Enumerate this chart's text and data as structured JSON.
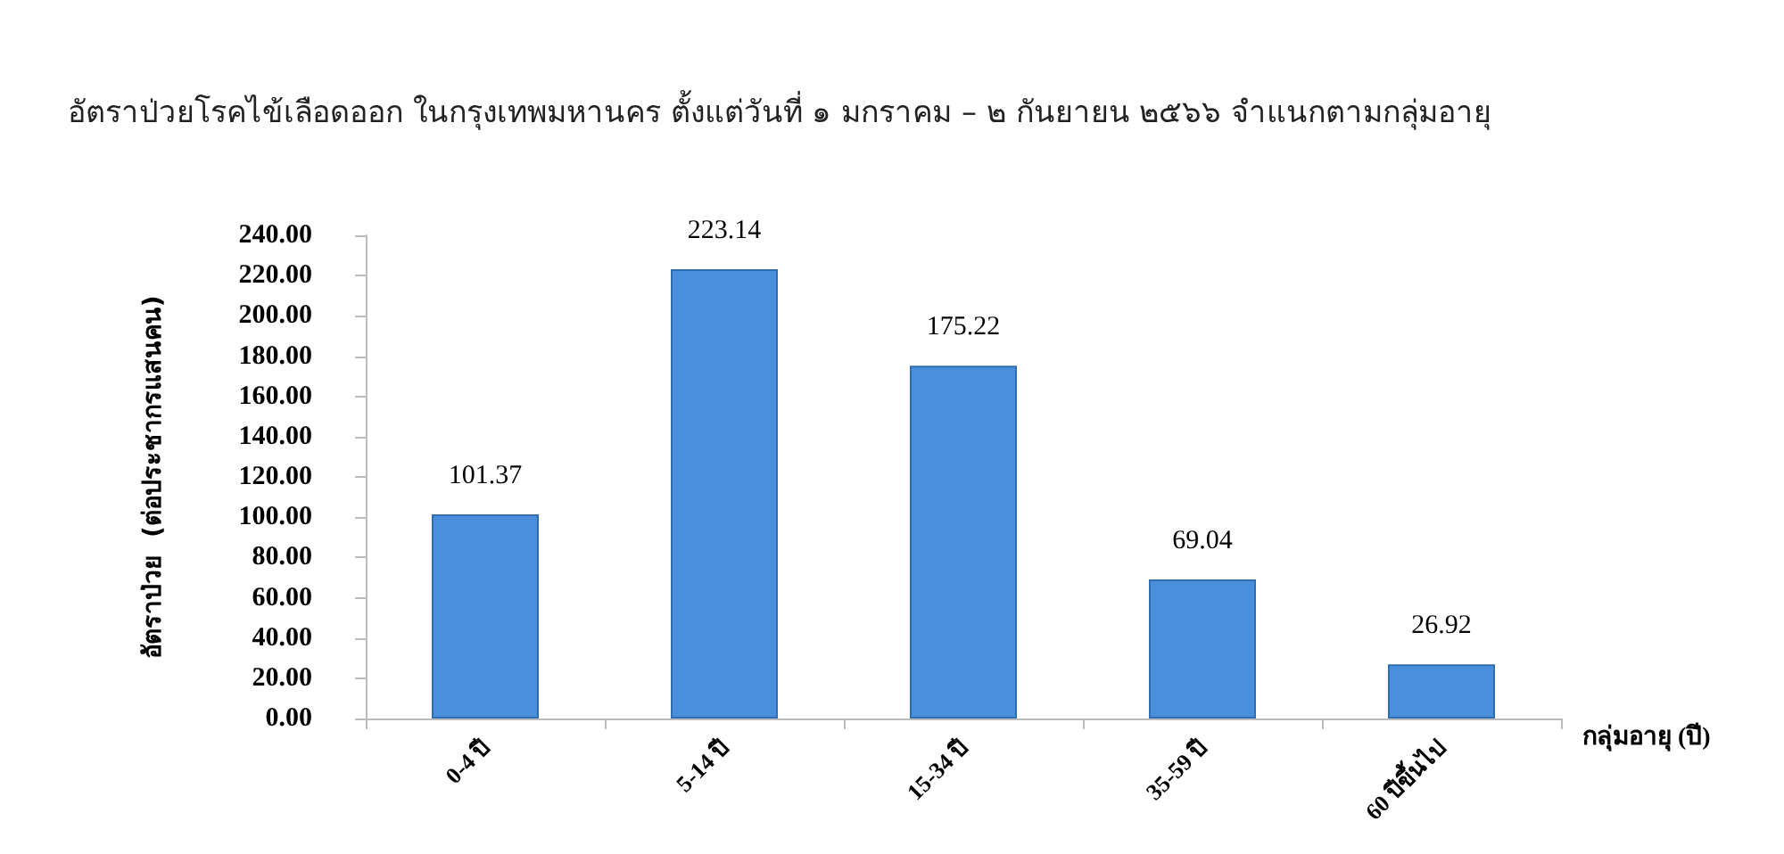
{
  "chart_data": {
    "type": "bar",
    "title": "อัตราป่วยโรคไข้เลือดออก ในกรุงเทพมหานคร ตั้งแต่วันที่ ๑ มกราคม – ๒ กันยายน ๒๕๖๖ จำแนกตามกลุ่มอายุ",
    "xlabel": "กลุ่มอายุ (ปี)",
    "ylabel": "อัตราป่วย  (ต่อประชากรแสนคน)",
    "categories": [
      "0-4 ปี",
      "5-14 ปี",
      "15-34 ปี",
      "35-59 ปี",
      "60 ปีขึ้นไป"
    ],
    "values": [
      101.37,
      223.14,
      175.22,
      69.04,
      26.92
    ],
    "color": "#4a8fdb",
    "ylim": [
      0,
      240
    ],
    "yticks": [
      {
        "value": 0,
        "label": "0.00"
      },
      {
        "value": 20,
        "label": "20.00"
      },
      {
        "value": 40,
        "label": "40.00"
      },
      {
        "value": 60,
        "label": "60.00"
      },
      {
        "value": 80,
        "label": "80.00"
      },
      {
        "value": 100,
        "label": "100.00"
      },
      {
        "value": 120,
        "label": "120.00"
      },
      {
        "value": 140,
        "label": "140.00"
      },
      {
        "value": 160,
        "label": "160.00"
      },
      {
        "value": 180,
        "label": "180.00"
      },
      {
        "value": 200,
        "label": "200.00"
      },
      {
        "value": 220,
        "label": "220.00"
      },
      {
        "value": 240,
        "label": "240.00"
      }
    ],
    "data_labels": true
  }
}
